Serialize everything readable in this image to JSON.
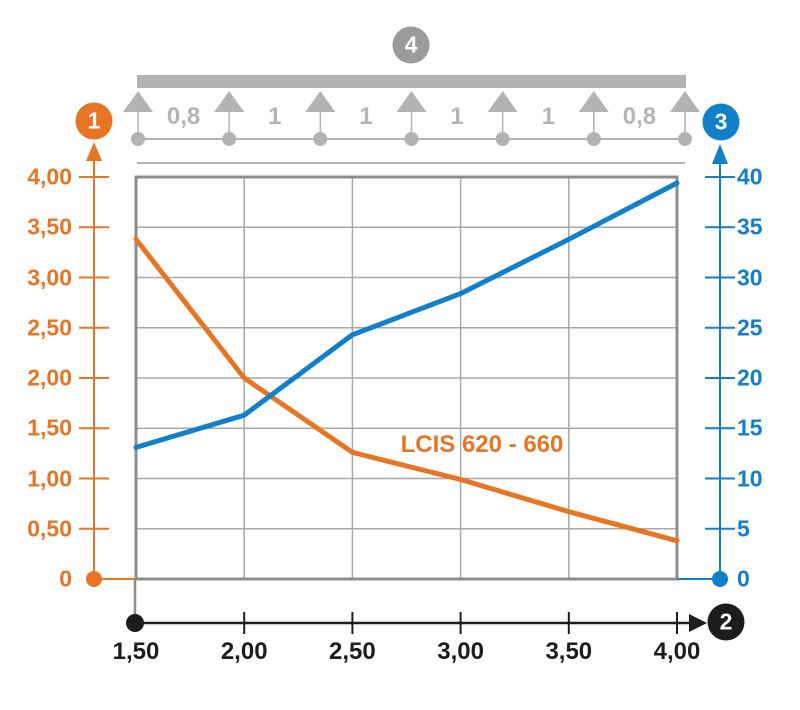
{
  "labels": {
    "markers": {
      "diagram": "4",
      "left_axis": "1",
      "x_axis": "2",
      "right_axis": "3"
    }
  },
  "diagram": {
    "support_count": 7,
    "span_labels": [
      "0,8",
      "1",
      "1",
      "1",
      "1",
      "0,8"
    ]
  },
  "chart_data": {
    "type": "line",
    "series_label": "LCIS 620 - 660",
    "x": [
      1.5,
      2.0,
      2.5,
      3.0,
      3.5,
      4.0
    ],
    "series": [
      {
        "name": "orange-curve-marker-1",
        "axis": "left",
        "color": "#e87524",
        "values": [
          3.38,
          2.0,
          1.26,
          0.99,
          0.67,
          0.38
        ]
      },
      {
        "name": "blue-curve-marker-3",
        "axis": "right",
        "color": "#1180c8",
        "values": [
          13.1,
          16.3,
          24.3,
          28.4,
          33.8,
          39.4
        ]
      }
    ],
    "axes": {
      "left": {
        "marker": "1",
        "min": 0,
        "max": 4,
        "step": 0.5,
        "color": "#e87524",
        "tick_labels": [
          "0",
          "0,50",
          "1,00",
          "1,50",
          "2,00",
          "2,50",
          "3,00",
          "3,50",
          "4,00"
        ]
      },
      "right": {
        "marker": "3",
        "min": 0,
        "max": 40,
        "step": 5,
        "color": "#1180c8",
        "tick_labels": [
          "0",
          "5",
          "10",
          "15",
          "20",
          "25",
          "30",
          "35",
          "40"
        ]
      },
      "bottom": {
        "marker": "2",
        "min": 1.5,
        "max": 4.0,
        "step": 0.5,
        "color": "#1d1d1b",
        "tick_labels": [
          "1,50",
          "2,00",
          "2,50",
          "3,00",
          "3,50",
          "4,00"
        ]
      }
    },
    "grid": true,
    "legend": "none"
  },
  "palette": {
    "orange": "#e87524",
    "blue": "#1180c8",
    "black": "#1d1d1b",
    "gray_beam": "#b3b3b3",
    "gray_text": "#b5b5b5",
    "gray_grid": "#a8a8a8",
    "gray_border": "#8d8d8d",
    "gray_marker": "#9b9b9b"
  }
}
